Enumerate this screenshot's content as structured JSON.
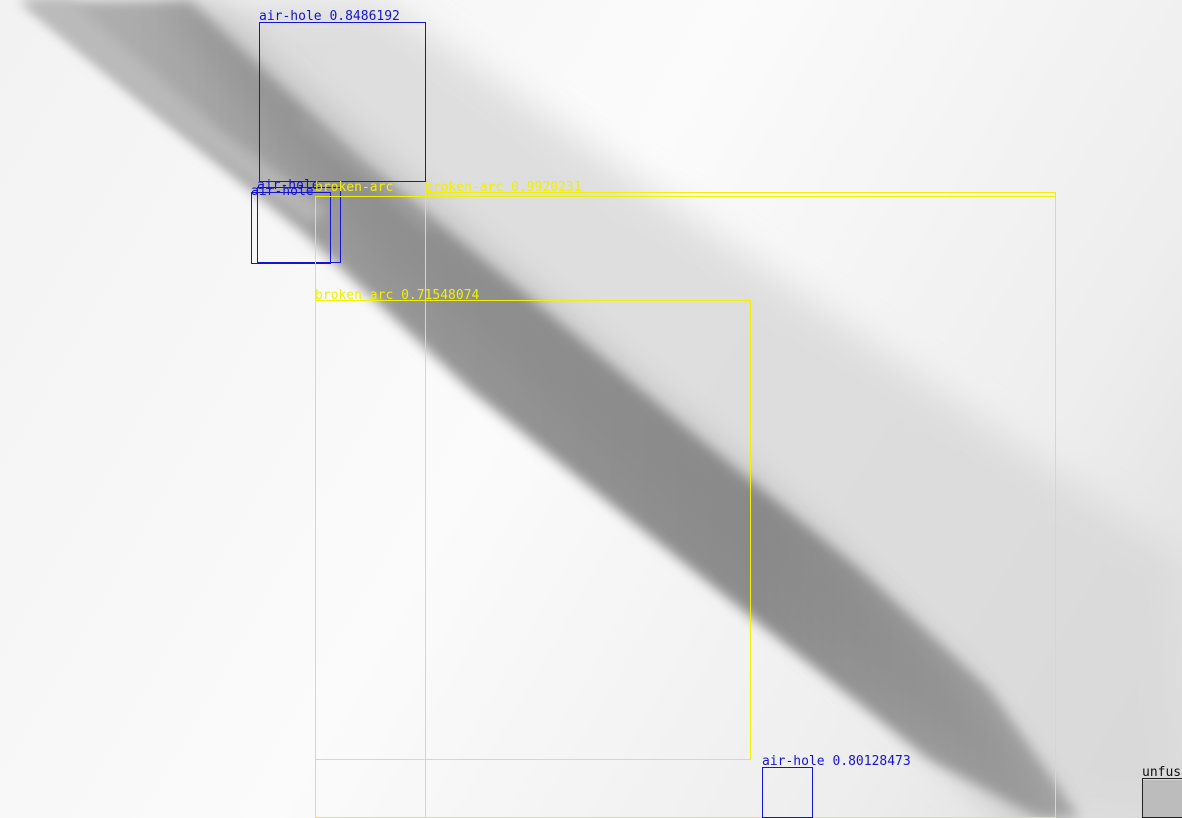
{
  "image": {
    "subject": "x-ray weld seam",
    "colors": {
      "air_hole": "#1414d2",
      "broken_arc": "#f0f000",
      "unfused": "#111111",
      "seam_dark": "#8a8a8a",
      "background": "#f4f4f4"
    }
  },
  "detections": [
    {
      "class": "air-hole",
      "score": "0.8486192",
      "label": "air-hole 0.8486192",
      "color": "air_hole"
    },
    {
      "class": "air-hole",
      "score": "",
      "label": "air-hole",
      "color": "air_hole"
    },
    {
      "class": "air-hole",
      "score": "",
      "label": "air-hole",
      "color": "air_hole"
    },
    {
      "class": "broken-arc",
      "score": "0.9920231",
      "label": "broken-arc 0.9920231",
      "color": "broken_arc"
    },
    {
      "class": "broken-arc",
      "score": "0.71548074",
      "label": "broken-arc 0.71548074",
      "color": "broken_arc"
    },
    {
      "class": "broken-arc",
      "score": "",
      "label": "broken-arc",
      "color": "broken_arc"
    },
    {
      "class": "air-hole",
      "score": "0.80128473",
      "label": "air-hole 0.80128473",
      "color": "air_hole"
    },
    {
      "class": "unfused",
      "score": "",
      "label": "unfus",
      "color": "unfused"
    }
  ]
}
